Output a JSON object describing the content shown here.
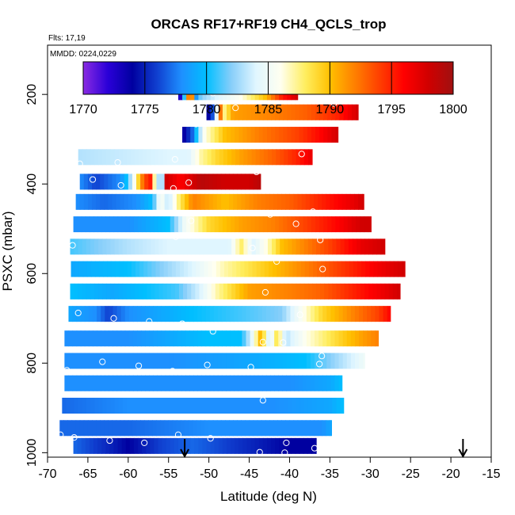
{
  "chart_data": {
    "type": "heatmap",
    "title": "ORCAS RF17+RF19 CH4_QCLS_trop",
    "flights_note": "Flts: 17,19",
    "date_note": "MMDD: 0224,0229",
    "xlabel": "Latitude (deg N)",
    "ylabel": "PSXC (mbar)",
    "xlim": [
      -70,
      -15
    ],
    "ylim": [
      1010,
      90
    ],
    "x_ticks": [
      -70,
      -65,
      -60,
      -55,
      -50,
      -45,
      -40,
      -35,
      -30,
      -25,
      -20,
      -15
    ],
    "x_tick_labels": [
      "-70",
      "-65",
      "-60",
      "-55",
      "-50",
      "-45",
      "-40",
      "-35",
      "-30",
      "-25",
      "-20",
      "-15"
    ],
    "y_ticks": [
      200,
      400,
      600,
      800,
      1000
    ],
    "y_tick_labels": [
      "200",
      "400",
      "600",
      "800",
      "1000"
    ],
    "colorbar": {
      "min": 1770,
      "max": 1800,
      "ticks": [
        1770,
        1775,
        1780,
        1785,
        1790,
        1795,
        1800
      ],
      "tick_labels": [
        "1770",
        "1775",
        "1780",
        "1785",
        "1790",
        "1795",
        "1800"
      ],
      "stops": [
        {
          "v": 1770,
          "c": "#8a2be2"
        },
        {
          "v": 1772,
          "c": "#2a00d8"
        },
        {
          "v": 1774,
          "c": "#0000a0"
        },
        {
          "v": 1776,
          "c": "#1040d0"
        },
        {
          "v": 1778,
          "c": "#1e90ff"
        },
        {
          "v": 1780,
          "c": "#00bfff"
        },
        {
          "v": 1782,
          "c": "#87cefa"
        },
        {
          "v": 1784,
          "c": "#e0f6ff"
        },
        {
          "v": 1786,
          "c": "#fffff0"
        },
        {
          "v": 1788,
          "c": "#ffee60"
        },
        {
          "v": 1790,
          "c": "#ffc000"
        },
        {
          "v": 1792,
          "c": "#ff8000"
        },
        {
          "v": 1794,
          "c": "#ff4000"
        },
        {
          "v": 1796,
          "c": "#ff0000"
        },
        {
          "v": 1798,
          "c": "#d00000"
        },
        {
          "v": 1800,
          "c": "#a01010"
        }
      ]
    },
    "arrows_lat": [
      -53,
      -18.5
    ],
    "rows": [
      {
        "p": 195,
        "lat_min": -53.8,
        "lat_max": -39.0,
        "knots": [
          [
            -53.8,
            1771
          ],
          [
            -53.3,
            1774
          ],
          [
            -52.7,
            1790
          ],
          [
            -52.2,
            1796
          ],
          [
            -51.6,
            1778
          ],
          [
            -51.0,
            1782
          ],
          [
            -49.0,
            1784
          ],
          [
            -46.0,
            1786
          ],
          [
            -43.0,
            1790
          ],
          [
            -41.0,
            1795
          ],
          [
            -39.0,
            1798
          ]
        ]
      },
      {
        "p": 240,
        "lat_min": -50.3,
        "lat_max": -31.5,
        "knots": [
          [
            -50.3,
            1773
          ],
          [
            -49.2,
            1778
          ],
          [
            -48.8,
            1796
          ],
          [
            -48.2,
            1787
          ],
          [
            -47.0,
            1791
          ],
          [
            -42.0,
            1792
          ],
          [
            -38.0,
            1793
          ],
          [
            -34.0,
            1795
          ],
          [
            -31.5,
            1798
          ]
        ]
      },
      {
        "p": 290,
        "lat_min": -53.3,
        "lat_max": -34.0,
        "knots": [
          [
            -53.3,
            1773
          ],
          [
            -52.0,
            1777
          ],
          [
            -51.3,
            1782
          ],
          [
            -50.5,
            1786
          ],
          [
            -48.0,
            1790
          ],
          [
            -44.0,
            1792
          ],
          [
            -39.0,
            1794
          ],
          [
            -36.0,
            1796
          ],
          [
            -34.0,
            1798
          ]
        ]
      },
      {
        "p": 340,
        "lat_min": -66.2,
        "lat_max": -37.2,
        "knots": [
          [
            -66.2,
            1783
          ],
          [
            -55.0,
            1784
          ],
          [
            -52.5,
            1784
          ],
          [
            -51.0,
            1787
          ],
          [
            -49.0,
            1789
          ],
          [
            -46.0,
            1791
          ],
          [
            -42.0,
            1793
          ],
          [
            -39.0,
            1795
          ],
          [
            -37.2,
            1797
          ]
        ]
      },
      {
        "p": 395,
        "lat_min": -66.0,
        "lat_max": -43.6,
        "knots": [
          [
            -66.0,
            1778
          ],
          [
            -64.0,
            1776
          ],
          [
            -61.0,
            1778
          ],
          [
            -60.2,
            1780
          ],
          [
            -59.2,
            1786
          ],
          [
            -58.3,
            1792
          ],
          [
            -57.3,
            1796
          ],
          [
            -56.5,
            1783
          ],
          [
            -55.5,
            1783
          ],
          [
            -55.3,
            1798
          ],
          [
            -53.5,
            1796
          ],
          [
            -51.0,
            1799
          ],
          [
            -48.0,
            1798
          ],
          [
            -45.0,
            1798
          ],
          [
            -43.6,
            1799
          ]
        ]
      },
      {
        "p": 440,
        "lat_min": -66.5,
        "lat_max": -30.8,
        "knots": [
          [
            -66.5,
            1778
          ],
          [
            -63.0,
            1777
          ],
          [
            -59.0,
            1778
          ],
          [
            -57.0,
            1780
          ],
          [
            -56.0,
            1786
          ],
          [
            -55.0,
            1783
          ],
          [
            -54.0,
            1787
          ],
          [
            -52.0,
            1792
          ],
          [
            -48.0,
            1790
          ],
          [
            -44.0,
            1792
          ],
          [
            -40.0,
            1793
          ],
          [
            -36.0,
            1795
          ],
          [
            -32.0,
            1797
          ],
          [
            -30.8,
            1798
          ]
        ]
      },
      {
        "p": 490,
        "lat_min": -66.8,
        "lat_max": -29.9,
        "knots": [
          [
            -66.8,
            1778
          ],
          [
            -60.0,
            1778
          ],
          [
            -55.0,
            1780
          ],
          [
            -53.0,
            1785
          ],
          [
            -50.0,
            1789
          ],
          [
            -46.0,
            1791
          ],
          [
            -42.0,
            1792
          ],
          [
            -38.0,
            1794
          ],
          [
            -34.0,
            1796
          ],
          [
            -31.0,
            1798
          ],
          [
            -29.9,
            1798
          ]
        ]
      },
      {
        "p": 540,
        "lat_min": -67.2,
        "lat_max": -28.2,
        "knots": [
          [
            -67.2,
            1781
          ],
          [
            -60.0,
            1783
          ],
          [
            -55.0,
            1784
          ],
          [
            -50.0,
            1784
          ],
          [
            -47.5,
            1784
          ],
          [
            -46.0,
            1788
          ],
          [
            -44.5,
            1784
          ],
          [
            -43.0,
            1786
          ],
          [
            -41.0,
            1790
          ],
          [
            -38.0,
            1792
          ],
          [
            -35.0,
            1794
          ],
          [
            -31.0,
            1797
          ],
          [
            -28.2,
            1798
          ]
        ]
      },
      {
        "p": 590,
        "lat_min": -67.1,
        "lat_max": -25.7,
        "knots": [
          [
            -67.1,
            1779
          ],
          [
            -60.0,
            1780
          ],
          [
            -56.0,
            1782
          ],
          [
            -52.0,
            1784
          ],
          [
            -48.0,
            1787
          ],
          [
            -44.0,
            1789
          ],
          [
            -40.0,
            1791
          ],
          [
            -36.0,
            1793
          ],
          [
            -32.0,
            1795
          ],
          [
            -28.0,
            1797
          ],
          [
            -25.7,
            1798
          ]
        ]
      },
      {
        "p": 640,
        "lat_min": -67.2,
        "lat_max": -26.3,
        "knots": [
          [
            -67.2,
            1780
          ],
          [
            -62.0,
            1779
          ],
          [
            -58.0,
            1780
          ],
          [
            -54.0,
            1781
          ],
          [
            -51.0,
            1784
          ],
          [
            -49.0,
            1787
          ],
          [
            -45.0,
            1791
          ],
          [
            -40.0,
            1792
          ],
          [
            -36.0,
            1793
          ],
          [
            -32.0,
            1795
          ],
          [
            -28.0,
            1797
          ],
          [
            -26.3,
            1798
          ]
        ]
      },
      {
        "p": 690,
        "lat_min": -67.4,
        "lat_max": -27.5,
        "knots": [
          [
            -67.4,
            1779
          ],
          [
            -64.0,
            1778
          ],
          [
            -62.5,
            1776
          ],
          [
            -60.0,
            1778
          ],
          [
            -52.0,
            1780
          ],
          [
            -46.0,
            1781
          ],
          [
            -41.0,
            1782
          ],
          [
            -39.0,
            1785
          ],
          [
            -36.0,
            1789
          ],
          [
            -32.0,
            1792
          ],
          [
            -29.0,
            1794
          ],
          [
            -27.5,
            1796
          ]
        ]
      },
      {
        "p": 745,
        "lat_min": -67.9,
        "lat_max": -29.0,
        "knots": [
          [
            -67.9,
            1778
          ],
          [
            -60.0,
            1778
          ],
          [
            -50.0,
            1780
          ],
          [
            -46.0,
            1780
          ],
          [
            -44.5,
            1785
          ],
          [
            -43.5,
            1791
          ],
          [
            -42.5,
            1783
          ],
          [
            -41.5,
            1789
          ],
          [
            -40.5,
            1783
          ],
          [
            -38.0,
            1786
          ],
          [
            -34.0,
            1789
          ],
          [
            -31.0,
            1791
          ],
          [
            -29.0,
            1792
          ]
        ]
      },
      {
        "p": 795,
        "lat_min": -67.9,
        "lat_max": -30.7,
        "knots": [
          [
            -67.9,
            1778
          ],
          [
            -55.0,
            1778
          ],
          [
            -45.0,
            1779
          ],
          [
            -38.0,
            1780
          ],
          [
            -35.0,
            1782
          ],
          [
            -32.0,
            1784
          ],
          [
            -30.7,
            1785
          ]
        ]
      },
      {
        "p": 845,
        "lat_min": -67.9,
        "lat_max": -33.5,
        "knots": [
          [
            -67.9,
            1778
          ],
          [
            -58.0,
            1778
          ],
          [
            -48.0,
            1778
          ],
          [
            -40.0,
            1778
          ],
          [
            -35.0,
            1779
          ],
          [
            -33.5,
            1780
          ]
        ]
      },
      {
        "p": 895,
        "lat_min": -68.2,
        "lat_max": -33.3,
        "knots": [
          [
            -68.2,
            1777
          ],
          [
            -60.0,
            1778
          ],
          [
            -50.0,
            1778
          ],
          [
            -42.0,
            1778
          ],
          [
            -35.0,
            1779
          ],
          [
            -33.3,
            1780
          ]
        ]
      },
      {
        "p": 945,
        "lat_min": -68.5,
        "lat_max": -34.8,
        "knots": [
          [
            -68.5,
            1777
          ],
          [
            -60.0,
            1777
          ],
          [
            -50.0,
            1778
          ],
          [
            -42.0,
            1778
          ],
          [
            -36.0,
            1778
          ],
          [
            -34.8,
            1779
          ]
        ]
      },
      {
        "p": 985,
        "lat_min": -66.8,
        "lat_max": -36.7,
        "knots": [
          [
            -66.8,
            1777
          ],
          [
            -62.0,
            1775
          ],
          [
            -60.0,
            1774
          ],
          [
            -56.0,
            1776
          ],
          [
            -52.0,
            1777
          ],
          [
            -48.0,
            1776
          ],
          [
            -44.0,
            1775
          ],
          [
            -40.0,
            1774
          ],
          [
            -36.7,
            1774
          ]
        ]
      }
    ],
    "points": [
      [
        -49.5,
        197
      ],
      [
        -34.5,
        220
      ],
      [
        -46.7,
        230
      ],
      [
        -51.6,
        266
      ],
      [
        -38.5,
        333
      ],
      [
        -54.2,
        345
      ],
      [
        -61.3,
        352
      ],
      [
        -66.0,
        355
      ],
      [
        -44.1,
        373
      ],
      [
        -64.4,
        390
      ],
      [
        -66.9,
        398
      ],
      [
        -60.9,
        403
      ],
      [
        -52.5,
        397
      ],
      [
        -35.4,
        409
      ],
      [
        -54.4,
        410
      ],
      [
        -37.1,
        462
      ],
      [
        -42.4,
        468
      ],
      [
        -52.2,
        482
      ],
      [
        -39.2,
        489
      ],
      [
        -54.1,
        518
      ],
      [
        -36.2,
        525
      ],
      [
        -44.6,
        543
      ],
      [
        -66.9,
        537
      ],
      [
        -41.6,
        573
      ],
      [
        -35.9,
        590
      ],
      [
        -43.0,
        642
      ],
      [
        -66.2,
        688
      ],
      [
        -61.8,
        700
      ],
      [
        -57.4,
        707
      ],
      [
        -53.3,
        712
      ],
      [
        -38.7,
        692
      ],
      [
        -49.5,
        729
      ],
      [
        -43.3,
        753
      ],
      [
        -40.8,
        754
      ],
      [
        -36.0,
        784
      ],
      [
        -68.5,
        738
      ],
      [
        -63.2,
        797
      ],
      [
        -58.7,
        806
      ],
      [
        -50.2,
        804
      ],
      [
        -67.6,
        816
      ],
      [
        -54.5,
        818
      ],
      [
        -44.8,
        809
      ],
      [
        -36.3,
        802
      ],
      [
        -43.3,
        883
      ],
      [
        -68.4,
        960
      ],
      [
        -66.7,
        966
      ],
      [
        -53.8,
        960
      ],
      [
        -49.8,
        968
      ],
      [
        -62.3,
        973
      ],
      [
        -58.0,
        978
      ],
      [
        -40.4,
        978
      ],
      [
        -36.9,
        990
      ],
      [
        -43.7,
        999
      ],
      [
        -40.6,
        1000
      ]
    ]
  }
}
